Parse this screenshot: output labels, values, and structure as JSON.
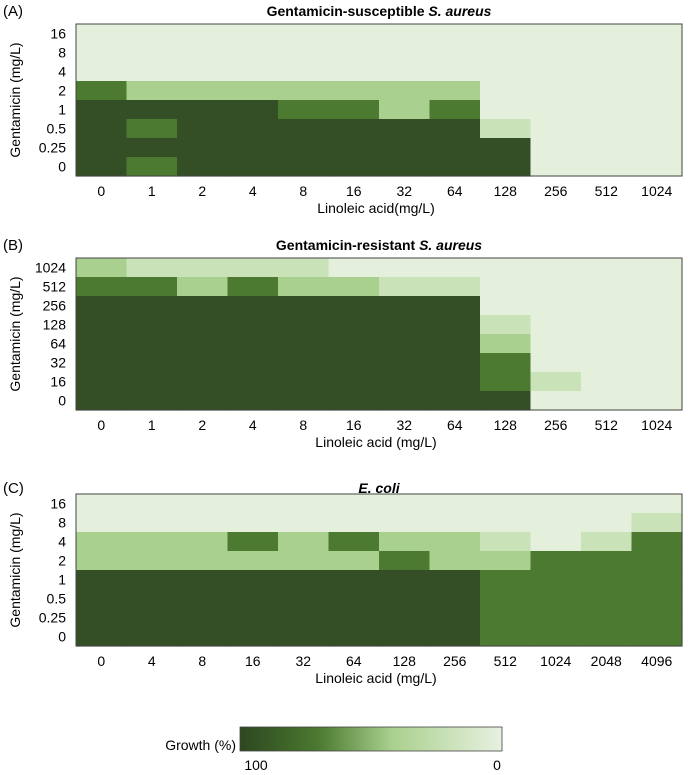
{
  "palette": {
    "c0": "#344f25",
    "c1": "#4b7a30",
    "c2": "#a9d08e",
    "c3": "#c9e2b8",
    "c4": "#e4efdc"
  },
  "chart_data": [
    {
      "type": "heatmap",
      "panel": "(A)",
      "title_prefix": "Gentamicin-susceptible ",
      "title_italic": "S. aureus",
      "xlabel": "Linoleic acid(mg/L)",
      "ylabel": "Gentamicin (mg/L)",
      "x": [
        "0",
        "1",
        "2",
        "4",
        "8",
        "16",
        "32",
        "64",
        "128",
        "256",
        "512",
        "1024"
      ],
      "y": [
        "16",
        "8",
        "4",
        "2",
        "1",
        "0.5",
        "0.25",
        "0"
      ],
      "levels_note": "0 = 100% growth (darkest) ... 4 = 0% growth (lightest)",
      "z": [
        [
          4,
          4,
          4,
          4,
          4,
          4,
          4,
          4,
          4,
          4,
          4,
          4
        ],
        [
          4,
          4,
          4,
          4,
          4,
          4,
          4,
          4,
          4,
          4,
          4,
          4
        ],
        [
          4,
          4,
          4,
          4,
          4,
          4,
          4,
          4,
          4,
          4,
          4,
          4
        ],
        [
          1,
          2,
          2,
          2,
          2,
          2,
          2,
          2,
          4,
          4,
          4,
          4
        ],
        [
          0,
          0,
          0,
          0,
          1,
          1,
          2,
          1,
          4,
          4,
          4,
          4
        ],
        [
          0,
          1,
          0,
          0,
          0,
          0,
          0,
          0,
          3,
          4,
          4,
          4
        ],
        [
          0,
          0,
          0,
          0,
          0,
          0,
          0,
          0,
          0,
          4,
          4,
          4
        ],
        [
          0,
          1,
          0,
          0,
          0,
          0,
          0,
          0,
          0,
          4,
          4,
          4
        ]
      ]
    },
    {
      "type": "heatmap",
      "panel": "(B)",
      "title_prefix": "Gentamicin-resistant ",
      "title_italic": "S. aureus",
      "xlabel": "Linoleic acid (mg/L)",
      "ylabel": "Gentamicin (mg/L)",
      "x": [
        "0",
        "1",
        "2",
        "4",
        "8",
        "16",
        "32",
        "64",
        "128",
        "256",
        "512",
        "1024"
      ],
      "y": [
        "1024",
        "512",
        "256",
        "128",
        "64",
        "32",
        "16",
        "0"
      ],
      "z": [
        [
          2,
          3,
          3,
          3,
          3,
          4,
          4,
          4,
          4,
          4,
          4,
          4
        ],
        [
          1,
          1,
          2,
          1,
          2,
          2,
          3,
          3,
          4,
          4,
          4,
          4
        ],
        [
          0,
          0,
          0,
          0,
          0,
          0,
          0,
          0,
          4,
          4,
          4,
          4
        ],
        [
          0,
          0,
          0,
          0,
          0,
          0,
          0,
          0,
          3,
          4,
          4,
          4
        ],
        [
          0,
          0,
          0,
          0,
          0,
          0,
          0,
          0,
          2,
          4,
          4,
          4
        ],
        [
          0,
          0,
          0,
          0,
          0,
          0,
          0,
          0,
          1,
          4,
          4,
          4
        ],
        [
          0,
          0,
          0,
          0,
          0,
          0,
          0,
          0,
          1,
          3,
          4,
          4
        ],
        [
          0,
          0,
          0,
          0,
          0,
          0,
          0,
          0,
          0,
          4,
          4,
          4
        ]
      ]
    },
    {
      "type": "heatmap",
      "panel": "(C)",
      "title_prefix": "",
      "title_italic": "E. coli",
      "xlabel": "Linoleic acid (mg/L)",
      "ylabel": "Gentamicin (mg/L)",
      "x": [
        "0",
        "4",
        "8",
        "16",
        "32",
        "64",
        "128",
        "256",
        "512",
        "1024",
        "2048",
        "4096"
      ],
      "y": [
        "16",
        "8",
        "4",
        "2",
        "1",
        "0.5",
        "0.25",
        "0"
      ],
      "z": [
        [
          4,
          4,
          4,
          4,
          4,
          4,
          4,
          4,
          4,
          4,
          4,
          4
        ],
        [
          4,
          4,
          4,
          4,
          4,
          4,
          4,
          4,
          4,
          4,
          4,
          3
        ],
        [
          2,
          2,
          2,
          1,
          2,
          1,
          2,
          2,
          3,
          4,
          3,
          1
        ],
        [
          2,
          2,
          2,
          2,
          2,
          2,
          1,
          2,
          2,
          1,
          1,
          1
        ],
        [
          0,
          0,
          0,
          0,
          0,
          0,
          0,
          0,
          1,
          1,
          1,
          1
        ],
        [
          0,
          0,
          0,
          0,
          0,
          0,
          0,
          0,
          1,
          1,
          1,
          1
        ],
        [
          0,
          0,
          0,
          0,
          0,
          0,
          0,
          0,
          1,
          1,
          1,
          1
        ],
        [
          0,
          0,
          0,
          0,
          0,
          0,
          0,
          0,
          1,
          1,
          1,
          1
        ]
      ]
    }
  ],
  "legend": {
    "label": "Growth (%)",
    "min_label": "100",
    "max_label": "0"
  }
}
